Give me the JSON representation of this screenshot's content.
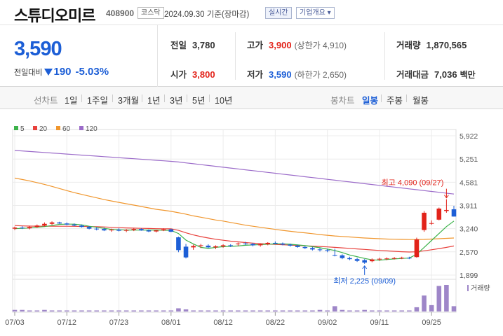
{
  "header": {
    "name": "스튜디오미르",
    "code": "408900",
    "market": "코스닥",
    "date_text": "2024.09.30 기준(장마감)",
    "realtime_label": "실시간",
    "company_info_label": "기업개요 ▾"
  },
  "summary": {
    "price": "3,590",
    "change_label": "전일대비",
    "change": "190",
    "change_pct": "-5.03%",
    "prev_close_label": "전일",
    "prev_close": "3,780",
    "open_label": "시가",
    "open": "3,800",
    "high_label": "고가",
    "high": "3,900",
    "upper_limit": "(상한가 4,910)",
    "low_label": "저가",
    "low": "3,590",
    "lower_limit": "(하한가 2,650)",
    "volume_label": "거래량",
    "volume": "1,870,565",
    "amount_label": "거래대금",
    "amount": "7,036",
    "amount_unit": "백만"
  },
  "range_bar": {
    "line_label": "선차트",
    "ranges": [
      "1일",
      "1주일",
      "3개월",
      "1년",
      "3년",
      "5년",
      "10년"
    ],
    "candle_label": "봉차트",
    "periods": [
      "일봉",
      "주봉",
      "월봉"
    ],
    "active_period": "일봉"
  },
  "colors": {
    "up": "#e2231a",
    "down": "#1c5ed6",
    "ma5": "#3cb24a",
    "ma20": "#e8413c",
    "ma60": "#f0962d",
    "ma120": "#9b6bc9",
    "volume": "#9e86c8"
  },
  "chart_data": {
    "type": "candlestick",
    "legend": [
      {
        "name": "5",
        "color": "#3cb24a"
      },
      {
        "name": "20",
        "color": "#e8413c"
      },
      {
        "name": "60",
        "color": "#f0962d"
      },
      {
        "name": "120",
        "color": "#9b6bc9"
      }
    ],
    "y_ticks": [
      "5,922",
      "5,251",
      "4,581",
      "3,911",
      "3,240",
      "2,570",
      "1,899"
    ],
    "ylim": [
      1899,
      5922
    ],
    "x_labels": [
      {
        "i": 0,
        "label": "07/03"
      },
      {
        "i": 7,
        "label": "07/12"
      },
      {
        "i": 14,
        "label": "07/23"
      },
      {
        "i": 21,
        "label": "08/01"
      },
      {
        "i": 28,
        "label": "08/12"
      },
      {
        "i": 35,
        "label": "08/22"
      },
      {
        "i": 42,
        "label": "09/02"
      },
      {
        "i": 49,
        "label": "09/11"
      },
      {
        "i": 56,
        "label": "09/25"
      }
    ],
    "annotations": {
      "high": {
        "text": "최고 4,090 (09/27)",
        "index": 58,
        "value": 4090
      },
      "low": {
        "text": "최저 2,225 (09/09)",
        "index": 47,
        "value": 2225
      }
    },
    "volume_label": "거래량",
    "ohlc": [
      [
        3240,
        3300,
        3200,
        3270
      ],
      [
        3270,
        3310,
        3230,
        3250
      ],
      [
        3250,
        3320,
        3220,
        3290
      ],
      [
        3290,
        3360,
        3260,
        3330
      ],
      [
        3330,
        3420,
        3300,
        3380
      ],
      [
        3380,
        3450,
        3350,
        3420
      ],
      [
        3420,
        3440,
        3380,
        3390
      ],
      [
        3390,
        3420,
        3340,
        3360
      ],
      [
        3360,
        3390,
        3310,
        3330
      ],
      [
        3330,
        3360,
        3270,
        3290
      ],
      [
        3290,
        3310,
        3220,
        3240
      ],
      [
        3240,
        3280,
        3190,
        3230
      ],
      [
        3230,
        3270,
        3170,
        3190
      ],
      [
        3190,
        3240,
        3150,
        3210
      ],
      [
        3210,
        3250,
        3160,
        3180
      ],
      [
        3180,
        3230,
        3140,
        3200
      ],
      [
        3200,
        3260,
        3170,
        3230
      ],
      [
        3230,
        3250,
        3180,
        3190
      ],
      [
        3190,
        3220,
        3140,
        3160
      ],
      [
        3160,
        3210,
        3130,
        3190
      ],
      [
        3190,
        3250,
        3170,
        3220
      ],
      [
        3220,
        3240,
        3140,
        3150
      ],
      [
        2990,
        3010,
        2560,
        2620
      ],
      [
        2720,
        2800,
        2380,
        2410
      ],
      [
        2700,
        2780,
        2630,
        2740
      ],
      [
        2740,
        2800,
        2680,
        2760
      ],
      [
        2750,
        2790,
        2680,
        2700
      ],
      [
        2700,
        2760,
        2650,
        2730
      ],
      [
        2730,
        2790,
        2690,
        2760
      ],
      [
        2760,
        2790,
        2710,
        2740
      ],
      [
        2790,
        2840,
        2740,
        2810
      ],
      [
        2810,
        2860,
        2770,
        2800
      ],
      [
        2800,
        2830,
        2730,
        2760
      ],
      [
        2760,
        2810,
        2720,
        2790
      ],
      [
        2790,
        2850,
        2760,
        2830
      ],
      [
        2830,
        2870,
        2790,
        2810
      ],
      [
        2810,
        2840,
        2760,
        2780
      ],
      [
        2780,
        2810,
        2720,
        2750
      ],
      [
        2750,
        2780,
        2690,
        2710
      ],
      [
        2710,
        2740,
        2650,
        2680
      ],
      [
        2680,
        2710,
        2610,
        2640
      ],
      [
        2640,
        2680,
        2580,
        2620
      ],
      [
        2620,
        2660,
        2560,
        2600
      ],
      [
        2480,
        2660,
        2440,
        2470
      ],
      [
        2470,
        2500,
        2360,
        2390
      ],
      [
        2390,
        2430,
        2330,
        2360
      ],
      [
        2360,
        2400,
        2280,
        2310
      ],
      [
        2330,
        2360,
        2225,
        2260
      ],
      [
        2300,
        2380,
        2270,
        2350
      ],
      [
        2350,
        2400,
        2310,
        2370
      ],
      [
        2370,
        2410,
        2330,
        2380
      ],
      [
        2380,
        2420,
        2350,
        2390
      ],
      [
        2390,
        2430,
        2360,
        2400
      ],
      [
        2400,
        2430,
        2360,
        2390
      ],
      [
        2420,
        2980,
        2400,
        2930
      ],
      [
        3200,
        3750,
        3150,
        3700
      ],
      [
        3380,
        3480,
        3350,
        3400
      ],
      [
        3500,
        3850,
        3480,
        3820
      ],
      [
        3750,
        4090,
        3700,
        3780
      ],
      [
        3800,
        3900,
        3590,
        3590
      ]
    ],
    "volume": [
      3,
      3,
      2,
      2,
      3,
      2,
      2,
      2,
      2,
      2,
      2,
      2,
      2,
      2,
      2,
      2,
      2,
      2,
      2,
      2,
      2,
      2,
      6,
      4,
      2,
      2,
      2,
      2,
      2,
      2,
      2,
      2,
      2,
      2,
      2,
      2,
      2,
      2,
      2,
      2,
      2,
      3,
      2,
      10,
      3,
      2,
      2,
      3,
      2,
      2,
      2,
      2,
      2,
      2,
      8,
      30,
      12,
      48,
      50,
      10
    ],
    "ma5": [
      3240,
      3250,
      3260,
      3280,
      3300,
      3330,
      3365,
      3370,
      3370,
      3350,
      3310,
      3280,
      3250,
      3220,
      3210,
      3200,
      3200,
      3200,
      3200,
      3200,
      3195,
      3190,
      3100,
      2910,
      2800,
      2700,
      2670,
      2700,
      2720,
      2730,
      2740,
      2760,
      2770,
      2780,
      2790,
      2800,
      2800,
      2790,
      2770,
      2750,
      2720,
      2690,
      2650,
      2610,
      2550,
      2480,
      2430,
      2380,
      2340,
      2330,
      2350,
      2365,
      2380,
      2390,
      2500,
      2700,
      2900,
      3100,
      3300,
      3460
    ],
    "ma20": [
      3330,
      3320,
      3315,
      3312,
      3310,
      3310,
      3310,
      3310,
      3308,
      3305,
      3300,
      3295,
      3290,
      3280,
      3270,
      3262,
      3255,
      3250,
      3245,
      3240,
      3238,
      3235,
      3190,
      3120,
      3060,
      3010,
      2970,
      2935,
      2905,
      2880,
      2860,
      2840,
      2822,
      2808,
      2795,
      2785,
      2775,
      2765,
      2755,
      2745,
      2735,
      2725,
      2713,
      2700,
      2686,
      2672,
      2656,
      2640,
      2625,
      2610,
      2598,
      2586,
      2575,
      2566,
      2572,
      2600,
      2630,
      2665,
      2700,
      2740
    ],
    "ma60": [
      4700,
      4660,
      4620,
      4570,
      4520,
      4460,
      4400,
      4340,
      4280,
      4230,
      4180,
      4130,
      4080,
      4040,
      4000,
      3960,
      3920,
      3880,
      3840,
      3800,
      3770,
      3740,
      3700,
      3660,
      3610,
      3570,
      3530,
      3490,
      3460,
      3420,
      3380,
      3340,
      3310,
      3280,
      3250,
      3220,
      3190,
      3165,
      3140,
      3120,
      3095,
      3070,
      3050,
      3030,
      3015,
      3000,
      2985,
      2970,
      2960,
      2950,
      2940,
      2935,
      2930,
      2925,
      2925,
      2930,
      2940,
      2950,
      2960,
      2970
    ],
    "ma120": [
      5500,
      5485,
      5470,
      5455,
      5440,
      5425,
      5410,
      5395,
      5380,
      5365,
      5350,
      5335,
      5320,
      5305,
      5290,
      5275,
      5260,
      5245,
      5230,
      5215,
      5200,
      5185,
      5165,
      5140,
      5115,
      5090,
      5065,
      5040,
      5015,
      4990,
      4965,
      4940,
      4915,
      4890,
      4865,
      4840,
      4815,
      4790,
      4765,
      4740,
      4715,
      4690,
      4665,
      4640,
      4615,
      4590,
      4565,
      4540,
      4515,
      4490,
      4465,
      4440,
      4415,
      4390,
      4365,
      4340,
      4315,
      4290,
      4265,
      4240
    ]
  }
}
